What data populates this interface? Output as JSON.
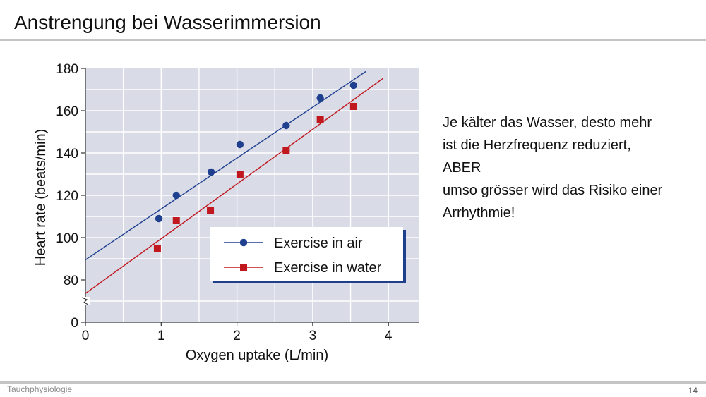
{
  "slide": {
    "title": "Anstrengung bei Wasserimmersion",
    "footer_left": "Tauchphysiologie",
    "page_number": "14",
    "text_lines": [
      "Je kälter das Wasser, desto mehr",
      "ist die Herzfrequenz reduziert,",
      "ABER",
      "umso grösser wird das Risiko einer",
      "Arrhythmie!"
    ]
  },
  "chart_data": {
    "type": "scatter",
    "xlabel": "Oxygen uptake (L/min)",
    "ylabel": "Heart rate (beats/min)",
    "xlim": [
      0,
      4.4
    ],
    "ylim": [
      70,
      180
    ],
    "xticks": [
      0,
      1,
      2,
      3,
      4
    ],
    "yticks": [
      0,
      80,
      100,
      120,
      140,
      160,
      180
    ],
    "axis_break": true,
    "grid": true,
    "legend_position": "lower-right",
    "series": [
      {
        "name": "Exercise in air",
        "color": "#1f3f8f",
        "marker": "circle",
        "x": [
          0.97,
          1.2,
          1.66,
          2.04,
          2.65,
          3.1,
          3.54
        ],
        "y": [
          109,
          120,
          131,
          144,
          153,
          166,
          172
        ],
        "trend": {
          "x": [
            0,
            3.7
          ],
          "y": [
            89.5,
            178.5
          ]
        }
      },
      {
        "name": "Exercise in water",
        "color": "#c0181e",
        "marker": "square",
        "x": [
          0.95,
          1.2,
          1.65,
          2.04,
          2.65,
          3.1,
          3.54
        ],
        "y": [
          95,
          108,
          113,
          130,
          141,
          156,
          162
        ],
        "trend": {
          "x": [
            0,
            3.93
          ],
          "y": [
            73.6,
            175.3
          ]
        }
      }
    ]
  }
}
